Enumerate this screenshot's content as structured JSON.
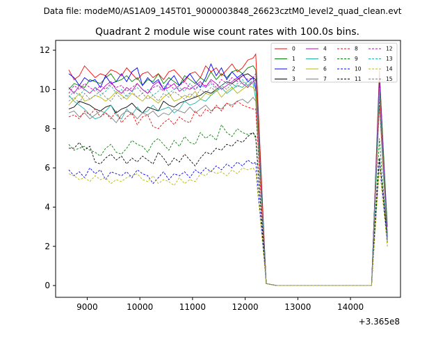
{
  "header": {
    "data_file": "Data file: modeM0/AS1A09_145T01_9000003848_26623cztM0_level2_quad_clean.evt"
  },
  "chart_data": {
    "type": "line",
    "title": "Quadrant 2 module wise count rates with 100.0s bins.",
    "xlabel": "",
    "ylabel": "",
    "x_offset_label": "+3.365e8",
    "xlim": [
      8400,
      14950
    ],
    "ylim": [
      -0.6,
      12.5
    ],
    "x_ticks": [
      9000,
      10000,
      11000,
      12000,
      13000,
      14000
    ],
    "y_ticks": [
      0,
      2,
      4,
      6,
      8,
      10,
      12
    ],
    "legend_position": "top-right",
    "x": [
      8650,
      8750,
      8850,
      8950,
      9050,
      9150,
      9250,
      9350,
      9450,
      9550,
      9650,
      9750,
      9850,
      9950,
      10050,
      10150,
      10250,
      10350,
      10450,
      10550,
      10650,
      10750,
      10850,
      10950,
      11050,
      11150,
      11250,
      11350,
      11450,
      11550,
      11650,
      11750,
      11850,
      11950,
      12050,
      12150,
      12200,
      12400,
      12600,
      12800,
      13000,
      13200,
      13400,
      13600,
      13800,
      14000,
      14200,
      14400,
      14550,
      14700
    ],
    "series": [
      {
        "name": "0",
        "color": "#ff0000",
        "dash": "solid",
        "values": [
          11.0,
          10.5,
          10.7,
          11.2,
          10.9,
          10.6,
          10.8,
          10.7,
          11.0,
          10.9,
          10.7,
          11.1,
          10.8,
          10.5,
          10.8,
          10.9,
          10.6,
          10.8,
          10.5,
          10.9,
          11.0,
          10.7,
          10.4,
          10.8,
          10.9,
          10.6,
          11.2,
          10.9,
          11.1,
          10.7,
          11.0,
          11.3,
          10.9,
          11.1,
          11.5,
          11.6,
          11.8,
          0.1,
          0,
          0,
          0,
          0,
          0,
          0,
          0,
          0,
          0,
          0,
          11.0,
          2.5
        ]
      },
      {
        "name": "1",
        "color": "#008000",
        "dash": "solid",
        "values": [
          10.0,
          10.3,
          10.2,
          10.1,
          10.5,
          10.4,
          10.3,
          10.6,
          10.8,
          10.4,
          10.5,
          10.7,
          10.4,
          10.6,
          10.2,
          10.5,
          10.4,
          10.8,
          10.3,
          10.6,
          10.4,
          10.2,
          10.7,
          10.5,
          10.3,
          10.6,
          10.4,
          10.9,
          10.5,
          10.8,
          10.6,
          10.9,
          11.0,
          10.8,
          11.1,
          11.2,
          11.0,
          0.1,
          0,
          0,
          0,
          0,
          0,
          0,
          0,
          0,
          0,
          0,
          10.8,
          3.0
        ]
      },
      {
        "name": "2",
        "color": "#0000ff",
        "dash": "solid",
        "values": [
          10.8,
          10.6,
          10.2,
          10.6,
          10.4,
          10.5,
          10.1,
          10.7,
          10.3,
          10.4,
          10.8,
          10.4,
          10.9,
          11.1,
          10.2,
          10.6,
          10.3,
          10.5,
          10.0,
          10.4,
          10.7,
          10.2,
          10.5,
          10.8,
          10.4,
          10.1,
          10.6,
          11.3,
          10.7,
          11.1,
          10.5,
          10.9,
          10.6,
          10.8,
          10.4,
          10.6,
          10.0,
          0.1,
          0,
          0,
          0,
          0,
          0,
          0,
          0,
          0,
          0,
          0,
          10.5,
          2.3
        ]
      },
      {
        "name": "3",
        "color": "#000000",
        "dash": "solid",
        "values": [
          9.0,
          9.1,
          9.4,
          9.3,
          9.2,
          9.0,
          8.9,
          9.1,
          9.2,
          8.8,
          9.0,
          9.1,
          9.3,
          9.0,
          8.8,
          9.1,
          9.0,
          8.9,
          9.4,
          9.2,
          9.1,
          9.3,
          9.4,
          9.5,
          9.6,
          9.7,
          9.9,
          9.8,
          10.0,
          10.2,
          10.4,
          10.3,
          10.5,
          10.7,
          10.8,
          10.6,
          10.5,
          0.1,
          0,
          0,
          0,
          0,
          0,
          0,
          0,
          0,
          0,
          0,
          10.2,
          2.5
        ]
      },
      {
        "name": "4",
        "color": "#c000c0",
        "dash": "solid",
        "values": [
          10.1,
          9.8,
          10.2,
          10.0,
          9.8,
          10.1,
          9.9,
          10.2,
          10.4,
          10.0,
          9.8,
          10.1,
          9.9,
          10.3,
          10.0,
          9.8,
          10.2,
          10.4,
          10.0,
          10.1,
          10.3,
          9.9,
          10.1,
          10.0,
          10.2,
          10.4,
          10.1,
          10.5,
          10.3,
          10.0,
          10.2,
          10.4,
          10.6,
          10.3,
          10.1,
          10.4,
          10.5,
          0.1,
          0,
          0,
          0,
          0,
          0,
          0,
          0,
          0,
          0,
          0,
          10.6,
          2.6
        ]
      },
      {
        "name": "5",
        "color": "#20b2aa",
        "dash": "solid",
        "values": [
          9.7,
          9.4,
          9.2,
          9.0,
          8.7,
          8.5,
          8.6,
          8.9,
          9.2,
          8.7,
          8.5,
          9.0,
          8.7,
          9.1,
          8.8,
          8.9,
          9.2,
          8.9,
          9.0,
          9.1,
          8.8,
          9.0,
          9.4,
          9.2,
          9.3,
          9.5,
          9.4,
          9.7,
          9.9,
          10.1,
          9.8,
          10.0,
          10.2,
          10.1,
          10.4,
          10.3,
          9.5,
          0.1,
          0,
          0,
          0,
          0,
          0,
          0,
          0,
          0,
          0,
          0,
          10.2,
          2.4
        ]
      },
      {
        "name": "6",
        "color": "#b8b800",
        "dash": "solid",
        "values": [
          9.2,
          9.5,
          9.8,
          9.4,
          9.5,
          9.7,
          9.6,
          9.4,
          9.6,
          9.9,
          9.7,
          9.5,
          9.8,
          9.6,
          9.4,
          9.7,
          9.5,
          9.3,
          9.6,
          9.8,
          9.4,
          9.5,
          9.7,
          9.6,
          9.9,
          9.5,
          9.8,
          9.7,
          10.0,
          9.6,
          9.9,
          10.1,
          9.8,
          10.0,
          10.2,
          10.1,
          9.9,
          0.1,
          0,
          0,
          0,
          0,
          0,
          0,
          0,
          0,
          0,
          0,
          9.8,
          2.2
        ]
      },
      {
        "name": "7",
        "color": "#808080",
        "dash": "solid",
        "values": [
          8.8,
          8.9,
          8.6,
          8.8,
          8.5,
          8.7,
          8.9,
          8.8,
          8.6,
          8.3,
          8.7,
          8.9,
          8.8,
          8.5,
          8.8,
          8.7,
          8.9,
          8.6,
          8.8,
          8.7,
          9.0,
          8.9,
          8.8,
          9.1,
          8.8,
          9.0,
          9.2,
          8.9,
          9.1,
          9.0,
          9.3,
          9.2,
          9.4,
          9.5,
          9.3,
          9.6,
          9.4,
          0.1,
          0,
          0,
          0,
          0,
          0,
          0,
          0,
          0,
          0,
          0,
          9.2,
          2.2
        ]
      },
      {
        "name": "8",
        "color": "#ff0000",
        "dash": "dashed",
        "values": [
          8.6,
          8.7,
          8.5,
          8.9,
          8.7,
          9.0,
          8.6,
          8.8,
          8.5,
          8.9,
          8.3,
          8.6,
          8.8,
          8.2,
          8.6,
          8.7,
          8.1,
          8.0,
          8.3,
          8.5,
          8.2,
          8.6,
          8.4,
          8.3,
          8.9,
          8.6,
          9.0,
          8.8,
          9.2,
          8.9,
          9.3,
          9.1,
          9.4,
          9.2,
          9.1,
          9.0,
          9.0,
          0.1,
          0,
          0,
          0,
          0,
          0,
          0,
          0,
          0,
          0,
          0,
          9.5,
          2.3
        ]
      },
      {
        "name": "9",
        "color": "#008000",
        "dash": "dashed",
        "values": [
          7.2,
          6.9,
          7.0,
          7.1,
          6.9,
          6.8,
          6.6,
          7.0,
          7.2,
          6.8,
          6.7,
          7.0,
          7.4,
          7.2,
          7.1,
          6.8,
          7.3,
          7.5,
          7.2,
          6.9,
          7.4,
          7.1,
          7.6,
          7.3,
          7.2,
          7.8,
          7.5,
          7.7,
          7.4,
          8.2,
          7.8,
          7.6,
          8.0,
          7.8,
          7.7,
          7.8,
          7.5,
          0.1,
          0,
          0,
          0,
          0,
          0,
          0,
          0,
          0,
          0,
          0,
          7.5,
          2.0
        ]
      },
      {
        "name": "10",
        "color": "#0000ff",
        "dash": "dashed",
        "values": [
          5.9,
          5.6,
          5.8,
          5.5,
          6.0,
          5.7,
          5.9,
          5.4,
          5.8,
          5.7,
          5.6,
          5.8,
          5.5,
          5.9,
          5.7,
          5.6,
          5.2,
          5.5,
          5.8,
          5.4,
          5.7,
          5.6,
          5.8,
          5.5,
          5.9,
          5.7,
          6.0,
          5.8,
          6.1,
          5.9,
          6.2,
          6.0,
          6.3,
          6.1,
          6.4,
          6.2,
          6.3,
          0.1,
          0,
          0,
          0,
          0,
          0,
          0,
          0,
          0,
          0,
          0,
          6.5,
          2.2
        ]
      },
      {
        "name": "11",
        "color": "#000000",
        "dash": "dashed",
        "values": [
          7.0,
          7.0,
          7.3,
          6.9,
          7.1,
          6.3,
          6.2,
          6.5,
          6.7,
          6.4,
          6.6,
          6.2,
          6.5,
          6.3,
          6.6,
          6.4,
          6.2,
          6.8,
          6.5,
          6.1,
          6.5,
          6.3,
          6.7,
          6.4,
          6.1,
          6.5,
          6.8,
          6.7,
          7.0,
          6.9,
          7.2,
          7.1,
          7.4,
          7.3,
          7.6,
          7.8,
          7.6,
          0.1,
          0,
          0,
          0,
          0,
          0,
          0,
          0,
          0,
          0,
          0,
          6.5,
          2.4
        ]
      },
      {
        "name": "12",
        "color": "#c000c0",
        "dash": "dashed",
        "values": [
          9.8,
          10.2,
          10.0,
          10.3,
          10.1,
          9.9,
          10.2,
          10.0,
          10.3,
          10.1,
          10.2,
          9.9,
          10.1,
          10.3,
          10.0,
          9.8,
          10.1,
          10.2,
          9.9,
          10.3,
          10.0,
          10.2,
          10.4,
          10.1,
          10.0,
          10.3,
          10.2,
          10.4,
          10.1,
          10.5,
          10.3,
          10.6,
          10.4,
          10.7,
          10.5,
          10.6,
          10.8,
          0.1,
          0,
          0,
          0,
          0,
          0,
          0,
          0,
          0,
          0,
          0,
          10.3,
          2.6
        ]
      },
      {
        "name": "13",
        "color": "#20b2aa",
        "dash": "dashed",
        "values": [
          9.6,
          9.9,
          9.7,
          10.0,
          9.8,
          10.1,
          9.7,
          9.9,
          10.2,
          9.8,
          10.0,
          9.6,
          9.9,
          10.1,
          9.8,
          10.0,
          9.7,
          9.9,
          10.2,
          9.8,
          10.0,
          10.1,
          9.9,
          10.3,
          10.0,
          10.2,
          10.1,
          10.3,
          10.0,
          10.2,
          10.4,
          10.1,
          10.3,
          10.5,
          10.2,
          10.4,
          10.3,
          0.1,
          0,
          0,
          0,
          0,
          0,
          0,
          0,
          0,
          0,
          0,
          10.0,
          2.4
        ]
      },
      {
        "name": "14",
        "color": "#b8b800",
        "dash": "dashed",
        "values": [
          5.7,
          5.6,
          5.4,
          5.5,
          5.3,
          5.6,
          5.4,
          5.5,
          5.2,
          5.4,
          5.3,
          5.5,
          5.6,
          5.7,
          5.4,
          5.3,
          5.6,
          5.2,
          5.4,
          5.3,
          5.1,
          5.5,
          5.2,
          5.4,
          5.3,
          5.7,
          5.6,
          5.9,
          5.7,
          5.8,
          5.6,
          5.9,
          5.7,
          6.0,
          5.9,
          6.0,
          5.8,
          0.1,
          0,
          0,
          0,
          0,
          0,
          0,
          0,
          0,
          0,
          0,
          6.0,
          2.0
        ]
      },
      {
        "name": "15",
        "color": "#808080",
        "dash": "dashed",
        "values": [
          9.4,
          9.6,
          9.3,
          9.8,
          9.5,
          9.7,
          9.9,
          9.6,
          9.4,
          9.8,
          9.5,
          9.7,
          9.9,
          9.6,
          9.8,
          9.5,
          9.7,
          9.4,
          9.8,
          9.6,
          9.9,
          9.7,
          9.5,
          9.8,
          9.6,
          10.0,
          9.8,
          10.1,
          9.9,
          10.2,
          10.0,
          10.3,
          10.1,
          10.4,
          10.2,
          10.5,
          10.4,
          0.1,
          0,
          0,
          0,
          0,
          0,
          0,
          0,
          0,
          0,
          0,
          10.0,
          2.2
        ]
      }
    ]
  }
}
